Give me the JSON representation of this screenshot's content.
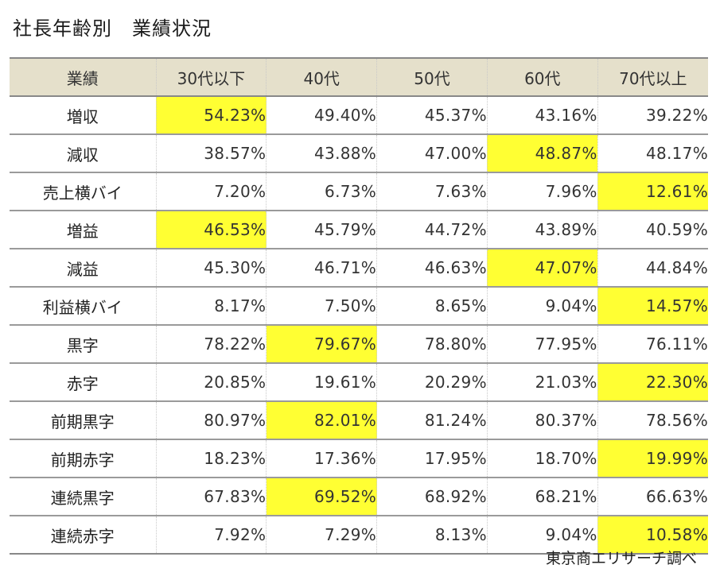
{
  "title": "社長年齢別　業績状況",
  "source": "東京商エリサーチ調べ",
  "colors": {
    "header_bg": "#e5e0cb",
    "highlight": "#ffff33"
  },
  "chart_data": {
    "type": "table",
    "title": "社長年齢別　業績状況",
    "columns": [
      "業績",
      "30代以下",
      "40代",
      "50代",
      "60代",
      "70代以上"
    ],
    "rows": [
      {
        "label": "増収",
        "values": [
          "54.23%",
          "49.40%",
          "45.37%",
          "43.16%",
          "39.22%"
        ],
        "highlight": 0
      },
      {
        "label": "減収",
        "values": [
          "38.57%",
          "43.88%",
          "47.00%",
          "48.87%",
          "48.17%"
        ],
        "highlight": 3
      },
      {
        "label": "売上横バイ",
        "values": [
          "7.20%",
          "6.73%",
          "7.63%",
          "7.96%",
          "12.61%"
        ],
        "highlight": 4
      },
      {
        "label": "増益",
        "values": [
          "46.53%",
          "45.79%",
          "44.72%",
          "43.89%",
          "40.59%"
        ],
        "highlight": 0
      },
      {
        "label": "減益",
        "values": [
          "45.30%",
          "46.71%",
          "46.63%",
          "47.07%",
          "44.84%"
        ],
        "highlight": 3
      },
      {
        "label": "利益横バイ",
        "values": [
          "8.17%",
          "7.50%",
          "8.65%",
          "9.04%",
          "14.57%"
        ],
        "highlight": 4
      },
      {
        "label": "黒字",
        "values": [
          "78.22%",
          "79.67%",
          "78.80%",
          "77.95%",
          "76.11%"
        ],
        "highlight": 1
      },
      {
        "label": "赤字",
        "values": [
          "20.85%",
          "19.61%",
          "20.29%",
          "21.03%",
          "22.30%"
        ],
        "highlight": 4
      },
      {
        "label": "前期黒字",
        "values": [
          "80.97%",
          "82.01%",
          "81.24%",
          "80.37%",
          "78.56%"
        ],
        "highlight": 1
      },
      {
        "label": "前期赤字",
        "values": [
          "18.23%",
          "17.36%",
          "17.95%",
          "18.70%",
          "19.99%"
        ],
        "highlight": 4
      },
      {
        "label": "連続黒字",
        "values": [
          "67.83%",
          "69.52%",
          "68.92%",
          "68.21%",
          "66.63%"
        ],
        "highlight": 1
      },
      {
        "label": "連続赤字",
        "values": [
          "7.92%",
          "7.29%",
          "8.13%",
          "9.04%",
          "10.58%"
        ],
        "highlight": 4
      }
    ]
  }
}
